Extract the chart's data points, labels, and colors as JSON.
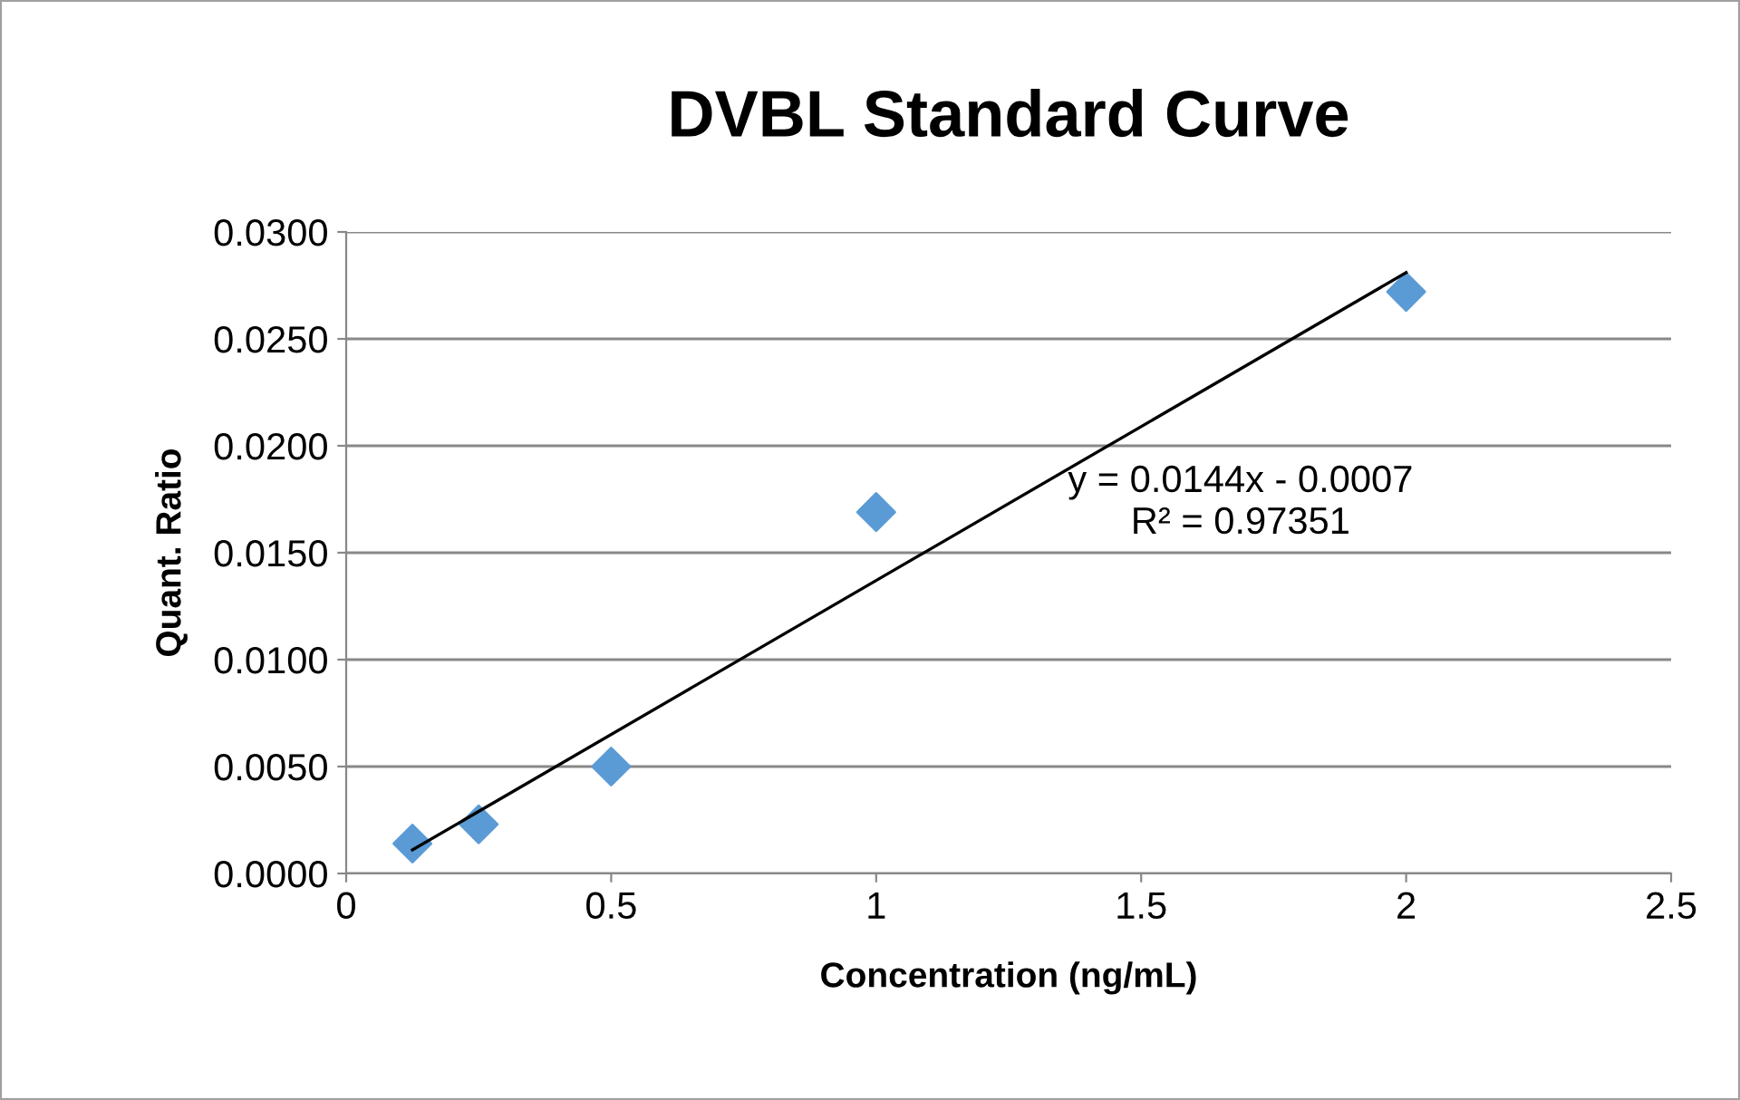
{
  "chart_data": {
    "type": "scatter",
    "title": "DVBL Standard Curve",
    "xlabel": "Concentration (ng/mL)",
    "ylabel": "Quant. Ratio",
    "series": [
      {
        "color": "#5b9bd5",
        "marker": "diamond",
        "x": [
          0.125,
          0.25,
          0.5,
          1,
          2
        ],
        "values": [
          0.0014,
          0.0023,
          0.005,
          0.0169,
          0.0272
        ]
      },
      {
        "type": "line",
        "color": "#000000",
        "marker": "none",
        "line_style": "solid",
        "x": [
          0.125,
          2
        ],
        "values": [
          0.0011,
          0.0281
        ]
      }
    ],
    "annotations": [
      "y = 0.0144x - 0.0007",
      "R² = 0.97351"
    ],
    "xlim": [
      0,
      2.5
    ],
    "xticks": [
      0,
      0.5,
      1,
      1.5,
      2,
      2.5
    ],
    "ylim": [
      0,
      0.03
    ],
    "yticks": [
      {
        "value": 0,
        "label": "0.0000"
      },
      {
        "value": 0.005,
        "label": "0.0050"
      },
      {
        "value": 0.01,
        "label": "0.0100"
      },
      {
        "value": 0.015,
        "label": "0.0150"
      },
      {
        "value": 0.02,
        "label": "0.0200"
      },
      {
        "value": 0.025,
        "label": "0.0250"
      },
      {
        "value": 0.03,
        "label": "0.0300"
      }
    ],
    "grid": "y",
    "legend": false
  }
}
